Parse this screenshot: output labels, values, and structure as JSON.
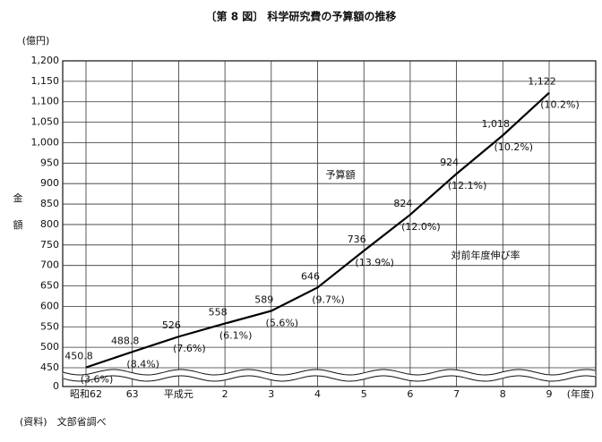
{
  "chart_data": {
    "type": "line",
    "title": "〔第 8 図〕 科学研究費の予算額の推移",
    "y_unit": "(億円)",
    "y_label": [
      "金",
      "額"
    ],
    "x_unit": "(年度)",
    "source": "(資料)　文部省調べ",
    "annotations": [
      "予算額",
      "対前年度伸び率"
    ],
    "categories": [
      "昭和62",
      "63",
      "平成元",
      "2",
      "3",
      "4",
      "5",
      "6",
      "7",
      "8",
      "9"
    ],
    "series": [
      {
        "name": "予算額",
        "color": "#000000",
        "values": [
          450.8,
          488.8,
          526,
          558,
          589,
          646,
          736,
          824,
          924,
          1018,
          1122
        ],
        "value_labels": [
          "450.8",
          "488.8",
          "526",
          "558",
          "589",
          "646",
          "736",
          "824",
          "924",
          "1,018",
          "1,122"
        ]
      }
    ],
    "growth_rates": {
      "values": [
        3.6,
        8.4,
        7.6,
        6.1,
        5.6,
        9.7,
        13.9,
        12.0,
        12.1,
        10.2,
        10.2
      ],
      "value_labels": [
        "(3.6%)",
        "(8.4%)",
        "(7.6%)",
        "(6.1%)",
        "(5.6%)",
        "(9.7%)",
        "(13.9%)",
        "(12.0%)",
        "(12.1%)",
        "(10.2%)",
        "(10.2%)"
      ]
    },
    "ylim": [
      0,
      1200
    ],
    "y_break": [
      0,
      450
    ],
    "yticks": [
      0,
      450,
      500,
      550,
      600,
      650,
      700,
      750,
      800,
      850,
      900,
      950,
      {
        "value": 1000,
        "label": "1,000"
      },
      {
        "value": 1050,
        "label": "1,050"
      },
      {
        "value": 1100,
        "label": "1,100"
      },
      {
        "value": 1150,
        "label": "1,150"
      },
      {
        "value": 1200,
        "label": "1,200"
      }
    ],
    "grid": true
  }
}
